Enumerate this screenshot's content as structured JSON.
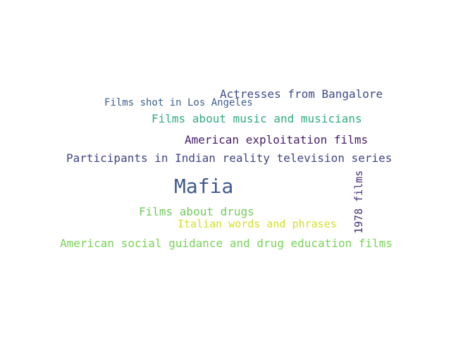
{
  "words": [
    {
      "text": "Mafia",
      "color": "#3f5b8c"
    },
    {
      "text": "Actresses from Bangalore",
      "color": "#3e4a89"
    },
    {
      "text": "Films shot in Los Angeles",
      "color": "#3b5f8d"
    },
    {
      "text": "Films about music and musicians",
      "color": "#2fab7e"
    },
    {
      "text": "American exploitation films",
      "color": "#461b68"
    },
    {
      "text": "Participants in Indian reality television series",
      "color": "#414487"
    },
    {
      "text": "Films about drugs",
      "color": "#71cc5c"
    },
    {
      "text": "Italian words and phrases",
      "color": "#d3e02a"
    },
    {
      "text": "American social guidance and drug education films",
      "color": "#79d25a"
    },
    {
      "text": "1978 films",
      "color": "#48307a"
    }
  ]
}
